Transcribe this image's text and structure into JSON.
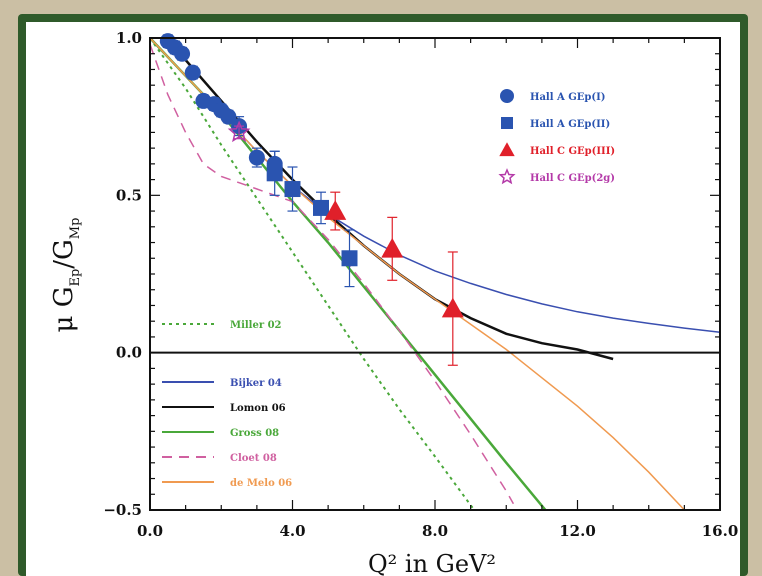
{
  "chart_data": {
    "type": "scatter",
    "xlabel": "Q² in GeV²",
    "ylabel_main": "μ G",
    "ylabel_sub1": "Ep",
    "ylabel_sep": "/G",
    "ylabel_sub2": "Mp",
    "xlim": [
      0,
      16
    ],
    "ylim": [
      -0.5,
      1.0
    ],
    "x_ticks": [
      {
        "value": 0,
        "label": "0.0"
      },
      {
        "value": 4,
        "label": "4.0"
      },
      {
        "value": 8,
        "label": "8.0"
      },
      {
        "value": 12,
        "label": "12.0"
      },
      {
        "value": 16,
        "label": "16.0"
      }
    ],
    "y_ticks": [
      {
        "value": 1.0,
        "label": "1.0"
      },
      {
        "value": 0.5,
        "label": "0.5"
      },
      {
        "value": 0.0,
        "label": "0.0"
      },
      {
        "value": -0.5,
        "label": "−0.5"
      }
    ],
    "zero_line": true,
    "data_series": [
      {
        "name": "Hall A GEp(I)",
        "marker": "circle",
        "color": "#2a54b0",
        "points": [
          {
            "x": 0.5,
            "y": 0.99,
            "err": 0.02
          },
          {
            "x": 0.7,
            "y": 0.97,
            "err": 0.02
          },
          {
            "x": 0.9,
            "y": 0.95,
            "err": 0.02
          },
          {
            "x": 1.2,
            "y": 0.89,
            "err": 0.02
          },
          {
            "x": 1.5,
            "y": 0.8,
            "err": 0.02
          },
          {
            "x": 1.8,
            "y": 0.79,
            "err": 0.02
          },
          {
            "x": 2.0,
            "y": 0.77,
            "err": 0.02
          },
          {
            "x": 2.2,
            "y": 0.75,
            "err": 0.02
          },
          {
            "x": 2.5,
            "y": 0.72,
            "err": 0.03
          },
          {
            "x": 3.0,
            "y": 0.62,
            "err": 0.03
          },
          {
            "x": 3.5,
            "y": 0.6,
            "err": 0.04
          }
        ]
      },
      {
        "name": "Hall A GEp(II)",
        "marker": "square",
        "color": "#2a54b0",
        "points": [
          {
            "x": 3.5,
            "y": 0.57,
            "err": 0.07
          },
          {
            "x": 4.0,
            "y": 0.52,
            "err": 0.07
          },
          {
            "x": 4.8,
            "y": 0.46,
            "err": 0.05
          },
          {
            "x": 5.6,
            "y": 0.3,
            "err": 0.09
          }
        ]
      },
      {
        "name": "Hall C GEp(III)",
        "marker": "triangle",
        "color": "#e0202a",
        "points": [
          {
            "x": 5.2,
            "y": 0.45,
            "err": 0.06
          },
          {
            "x": 6.8,
            "y": 0.33,
            "err": 0.1
          },
          {
            "x": 8.5,
            "y": 0.14,
            "err": 0.18
          }
        ]
      },
      {
        "name": "Hall C GEp(2g)",
        "marker": "star",
        "color": "#b43aa8",
        "points": [
          {
            "x": 2.5,
            "y": 0.7,
            "err": 0.02
          }
        ]
      }
    ],
    "curves": [
      {
        "name": "Miller 02",
        "color": "#4aa83a",
        "dash": "3,4",
        "width": 2,
        "points": [
          [
            0,
            1.0
          ],
          [
            1,
            0.84
          ],
          [
            2,
            0.66
          ],
          [
            3,
            0.49
          ],
          [
            4,
            0.32
          ],
          [
            5,
            0.15
          ],
          [
            6,
            -0.02
          ],
          [
            7,
            -0.18
          ],
          [
            8,
            -0.33
          ],
          [
            9.1,
            -0.5
          ]
        ]
      },
      {
        "name": "Bijker 04",
        "color": "#3a4fb0",
        "dash": "",
        "width": 1.5,
        "points": [
          [
            0,
            1.0
          ],
          [
            1,
            0.88
          ],
          [
            2,
            0.76
          ],
          [
            3,
            0.64
          ],
          [
            4,
            0.53
          ],
          [
            5,
            0.44
          ],
          [
            6,
            0.37
          ],
          [
            7,
            0.31
          ],
          [
            8,
            0.26
          ],
          [
            9,
            0.22
          ],
          [
            10,
            0.185
          ],
          [
            11,
            0.155
          ],
          [
            12,
            0.13
          ],
          [
            13,
            0.11
          ],
          [
            14,
            0.093
          ],
          [
            15,
            0.078
          ],
          [
            16,
            0.065
          ]
        ]
      },
      {
        "name": "Lomon 06",
        "color": "#111111",
        "dash": "",
        "width": 2.5,
        "points": [
          [
            0.4,
            1.0
          ],
          [
            1,
            0.93
          ],
          [
            2,
            0.8
          ],
          [
            3,
            0.67
          ],
          [
            4,
            0.55
          ],
          [
            5,
            0.44
          ],
          [
            6,
            0.34
          ],
          [
            7,
            0.25
          ],
          [
            8,
            0.17
          ],
          [
            9,
            0.11
          ],
          [
            10,
            0.06
          ],
          [
            11,
            0.03
          ],
          [
            12,
            0.01
          ],
          [
            13,
            -0.02
          ]
        ]
      },
      {
        "name": "Gross 08",
        "color": "#4aa83a",
        "dash": "",
        "width": 2.5,
        "points": [
          [
            0,
            1.0
          ],
          [
            1,
            0.88
          ],
          [
            2,
            0.76
          ],
          [
            3,
            0.62
          ],
          [
            4,
            0.48
          ],
          [
            5,
            0.35
          ],
          [
            6,
            0.21
          ],
          [
            7,
            0.07
          ],
          [
            8,
            -0.07
          ],
          [
            9,
            -0.21
          ],
          [
            10,
            -0.35
          ],
          [
            11.1,
            -0.5
          ]
        ]
      },
      {
        "name": "Cloet 08",
        "color": "#d060a0",
        "dash": "10,7",
        "width": 1.5,
        "points": [
          [
            0,
            0.98
          ],
          [
            0.5,
            0.82
          ],
          [
            1,
            0.7
          ],
          [
            1.5,
            0.6
          ],
          [
            2,
            0.56
          ],
          [
            2.5,
            0.54
          ],
          [
            3,
            0.52
          ],
          [
            4,
            0.48
          ],
          [
            5,
            0.36
          ],
          [
            6,
            0.22
          ],
          [
            7,
            0.07
          ],
          [
            8,
            -0.09
          ],
          [
            9,
            -0.26
          ],
          [
            10,
            -0.44
          ],
          [
            10.2,
            -0.48
          ]
        ]
      },
      {
        "name": "de Melo 06",
        "color": "#f09a50",
        "dash": "",
        "width": 1.5,
        "points": [
          [
            0,
            1.0
          ],
          [
            1,
            0.88
          ],
          [
            2,
            0.76
          ],
          [
            3,
            0.64
          ],
          [
            4,
            0.53
          ],
          [
            5,
            0.43
          ],
          [
            6,
            0.34
          ],
          [
            7,
            0.25
          ],
          [
            8,
            0.17
          ],
          [
            9,
            0.09
          ],
          [
            10,
            0.01
          ],
          [
            11,
            -0.08
          ],
          [
            12,
            -0.17
          ],
          [
            13,
            -0.27
          ],
          [
            14,
            -0.38
          ],
          [
            15,
            -0.5
          ]
        ]
      }
    ],
    "legend_data": [
      {
        "label": "Hall A GEp(I)",
        "marker": "circle",
        "color": "#2a54b0"
      },
      {
        "label": "Hall A GEp(II)",
        "marker": "square",
        "color": "#2a54b0"
      },
      {
        "label": "Hall C GEp(III)",
        "marker": "triangle",
        "color": "#e0202a"
      },
      {
        "label": "Hall C GEp(2g)",
        "marker": "star",
        "color": "#b43aa8"
      }
    ],
    "legend_miller": {
      "label": "Miller 02",
      "color": "#4aa83a",
      "dash": "3,4"
    },
    "legend_curves": [
      {
        "label": "Bijker 04",
        "color": "#3a4fb0",
        "dash": ""
      },
      {
        "label": "Lomon 06",
        "color": "#111111",
        "dash": ""
      },
      {
        "label": "Gross 08",
        "color": "#4aa83a",
        "dash": ""
      },
      {
        "label": "Cloet 08",
        "color": "#d060a0",
        "dash": "10,7"
      },
      {
        "label": "de Melo 06",
        "color": "#f09a50",
        "dash": ""
      }
    ]
  }
}
